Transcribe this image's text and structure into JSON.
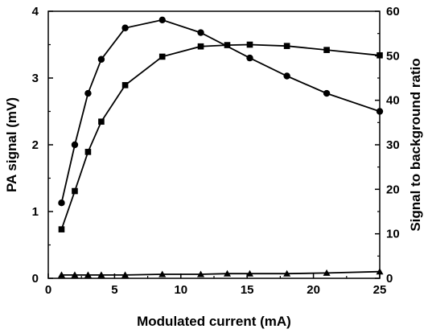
{
  "chart_data": {
    "type": "line",
    "xlabel": "Modulated current (mA)",
    "ylabel": "PA signal (mV)",
    "y2label": "Signal to background ratio",
    "xlim": [
      0,
      25
    ],
    "ylim": [
      0,
      4
    ],
    "y2lim": [
      0,
      60
    ],
    "x_ticks": [
      0,
      5,
      10,
      15,
      20,
      25
    ],
    "y_ticks": [
      0,
      1,
      2,
      3,
      4
    ],
    "y2_ticks": [
      0,
      10,
      20,
      30,
      40,
      50,
      60
    ],
    "grid": false,
    "series": [
      {
        "marker": "circle",
        "axis": "left",
        "x": [
          1,
          2,
          3,
          4,
          5.8,
          8.6,
          11.5,
          15.2,
          18,
          21,
          25
        ],
        "y": [
          1.13,
          2.0,
          2.77,
          3.28,
          3.75,
          3.87,
          3.68,
          3.3,
          3.03,
          2.77,
          2.5
        ]
      },
      {
        "marker": "square",
        "axis": "right",
        "x": [
          1,
          2,
          3,
          4,
          5.8,
          8.6,
          11.5,
          13.5,
          15.2,
          18,
          21,
          25
        ],
        "y": [
          11,
          19.6,
          28.4,
          35.2,
          43.4,
          49.8,
          52.1,
          52.4,
          52.5,
          52.2,
          51.3,
          50.1
        ]
      },
      {
        "marker": "triangle",
        "axis": "left",
        "x": [
          1,
          2,
          3,
          4,
          5.8,
          8.6,
          11.5,
          13.5,
          15.2,
          18,
          21,
          25
        ],
        "y": [
          0.05,
          0.05,
          0.05,
          0.05,
          0.05,
          0.06,
          0.06,
          0.07,
          0.07,
          0.07,
          0.08,
          0.1
        ]
      }
    ]
  }
}
